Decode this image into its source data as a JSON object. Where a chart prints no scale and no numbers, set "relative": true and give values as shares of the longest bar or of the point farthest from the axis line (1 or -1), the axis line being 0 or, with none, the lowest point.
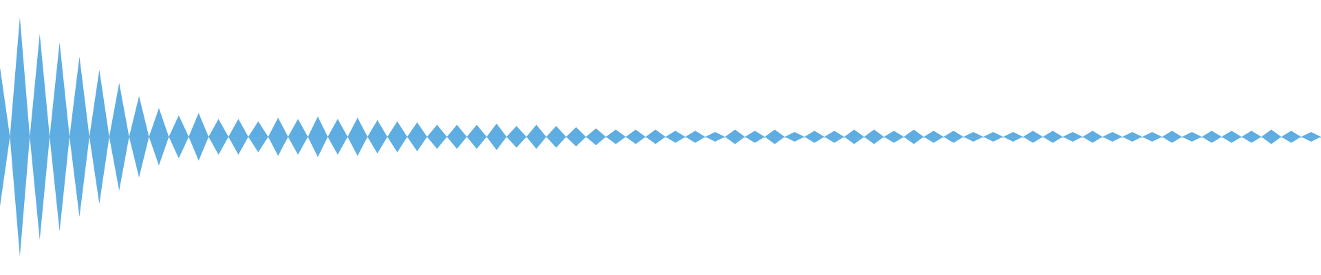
{
  "chart_data": {
    "type": "area",
    "relative": true,
    "ref_lines": [
      {
        "axis": "y",
        "value": 0,
        "color": "#6aaedc"
      }
    ],
    "categories": [
      null,
      null,
      null,
      null,
      null,
      null,
      null,
      null,
      null,
      null,
      null,
      null,
      null,
      null,
      null,
      null,
      null,
      null,
      null,
      null,
      null,
      null,
      null,
      null,
      null,
      null,
      null,
      null,
      null,
      null,
      null,
      null,
      null,
      null,
      null,
      null,
      null,
      null,
      null,
      null,
      null,
      null,
      null,
      null,
      null,
      null,
      null,
      null,
      null,
      null,
      null,
      null,
      null,
      null,
      null,
      null,
      null,
      null,
      null,
      null,
      null,
      null,
      null,
      null,
      null,
      null,
      null,
      null,
      null,
      null,
      null,
      null,
      null,
      null,
      null,
      null,
      null,
      null,
      null,
      null,
      null,
      null,
      null,
      null,
      null,
      null,
      null,
      null,
      null,
      null,
      null,
      null,
      null,
      null,
      null,
      null,
      null,
      null,
      null,
      null,
      null,
      null,
      null,
      null,
      null,
      null,
      null,
      null,
      null,
      null,
      null,
      null,
      null,
      null,
      null,
      null,
      null,
      null,
      null,
      null,
      null,
      null,
      null,
      null,
      null,
      null,
      null,
      null,
      null,
      null,
      null,
      null,
      null,
      null
    ],
    "series": [
      {
        "color": "#5dade2",
        "values": [
          0.58,
          0,
          1,
          0,
          0.86,
          0,
          0.79,
          0,
          0.67,
          0,
          0.56,
          0,
          0.45,
          0,
          0.34,
          0,
          0.24,
          0,
          0.18,
          0,
          0.2,
          0,
          0.15,
          0,
          0.15,
          0,
          0.13,
          0,
          0.16,
          0,
          0.15,
          0,
          0.17,
          0,
          0.15,
          0,
          0.16,
          0,
          0.14,
          0,
          0.13,
          0,
          0.12,
          0,
          0.1,
          0,
          0.1,
          0,
          0.1,
          0,
          0.11,
          0,
          0.09,
          0,
          0.1,
          0,
          0.09,
          0,
          0.08,
          0,
          0.07,
          0,
          0.06,
          0,
          0.06,
          0,
          0.06,
          0,
          0.05,
          0,
          0.05,
          0,
          0.04,
          0,
          0.06,
          0,
          0.05,
          0,
          0.06,
          0,
          0.04,
          0,
          0.05,
          0,
          0.05,
          0,
          0.06,
          0,
          0.06,
          0,
          0.05,
          0,
          0.06,
          0,
          0.05,
          0,
          0.05,
          0,
          0.04,
          0,
          0.04,
          0,
          0.04,
          0,
          0.05,
          0,
          0.05,
          0,
          0.04,
          0,
          0.05,
          0,
          0.04,
          0,
          0.04,
          0,
          0.04,
          0,
          0.05,
          0,
          0.04,
          0,
          0.05,
          0,
          0.05,
          0,
          0.05,
          0,
          0.06,
          0,
          0.05,
          0,
          0.04,
          0
        ]
      },
      {
        "color": "#5eaee2",
        "values": [
          -0.58,
          0,
          -1,
          0,
          -0.86,
          0,
          -0.79,
          0,
          -0.67,
          0,
          -0.56,
          0,
          -0.45,
          0,
          -0.34,
          0,
          -0.24,
          0,
          -0.18,
          0,
          -0.2,
          0,
          -0.15,
          0,
          -0.15,
          0,
          -0.13,
          0,
          -0.16,
          0,
          -0.15,
          0,
          -0.17,
          0,
          -0.15,
          0,
          -0.16,
          0,
          -0.14,
          0,
          -0.13,
          0,
          -0.12,
          0,
          -0.1,
          0,
          -0.1,
          0,
          -0.1,
          0,
          -0.11,
          0,
          -0.09,
          0,
          -0.1,
          0,
          -0.09,
          0,
          -0.08,
          0,
          -0.07,
          0,
          -0.06,
          0,
          -0.06,
          0,
          -0.06,
          0,
          -0.05,
          0,
          -0.05,
          0,
          -0.04,
          0,
          -0.06,
          0,
          -0.05,
          0,
          -0.06,
          0,
          -0.04,
          0,
          -0.05,
          0,
          -0.05,
          0,
          -0.06,
          0,
          -0.06,
          0,
          -0.05,
          0,
          -0.06,
          0,
          -0.05,
          0,
          -0.05,
          0,
          -0.04,
          0,
          -0.04,
          0,
          -0.04,
          0,
          -0.05,
          0,
          -0.05,
          0,
          -0.04,
          0,
          -0.05,
          0,
          -0.04,
          0,
          -0.04,
          0,
          -0.04,
          0,
          -0.05,
          0,
          -0.04,
          0,
          -0.05,
          0,
          -0.05,
          0,
          -0.05,
          0,
          -0.06,
          0,
          -0.05,
          0,
          -0.04,
          0
        ]
      }
    ]
  }
}
